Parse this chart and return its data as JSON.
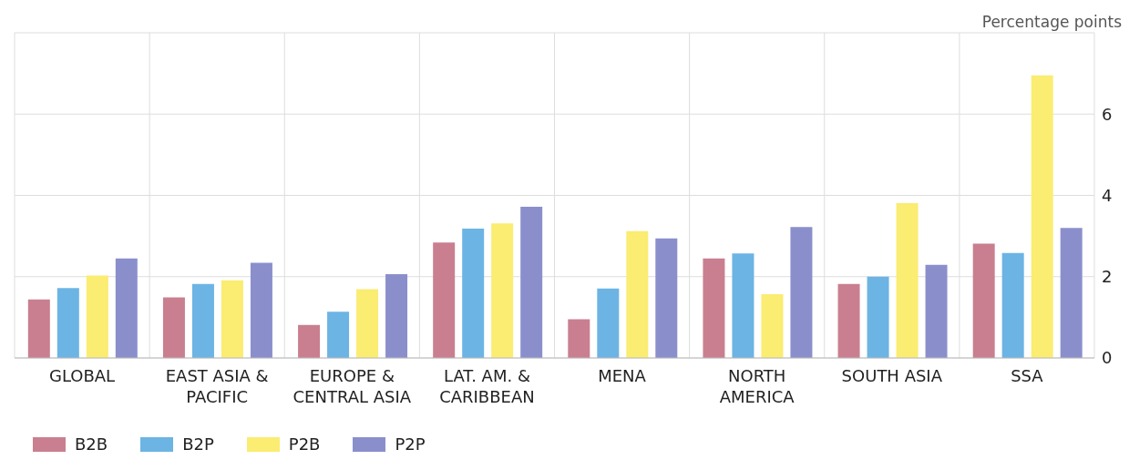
{
  "chart_data": {
    "type": "bar",
    "ylabel": "Percentage points",
    "categories": [
      "GLOBAL",
      "EAST ASIA & PACIFIC",
      "EUROPE & CENTRAL ASIA",
      "LAT. AM. & CARIBBEAN",
      "MENA",
      "NORTH AMERICA",
      "SOUTH ASIA",
      "SSA"
    ],
    "series": [
      {
        "name": "B2B",
        "color": "#c97f8f",
        "values": [
          1.44,
          1.49,
          0.81,
          2.84,
          0.95,
          2.45,
          1.82,
          2.81
        ]
      },
      {
        "name": "B2P",
        "color": "#6cb4e4",
        "values": [
          1.72,
          1.82,
          1.14,
          3.18,
          1.71,
          2.57,
          2.0,
          2.58
        ]
      },
      {
        "name": "P2B",
        "color": "#fbec72",
        "values": [
          2.03,
          1.91,
          1.69,
          3.31,
          3.12,
          1.57,
          3.81,
          6.95
        ]
      },
      {
        "name": "P2P",
        "color": "#8a8fcc",
        "values": [
          2.45,
          2.34,
          2.06,
          3.72,
          2.94,
          3.22,
          2.29,
          3.2
        ]
      }
    ],
    "ylim": [
      0,
      8
    ],
    "yticks": [
      0,
      2,
      4,
      6,
      {
        "value": 8,
        "label": null
      }
    ],
    "grid": true,
    "legend": "bottom left"
  }
}
